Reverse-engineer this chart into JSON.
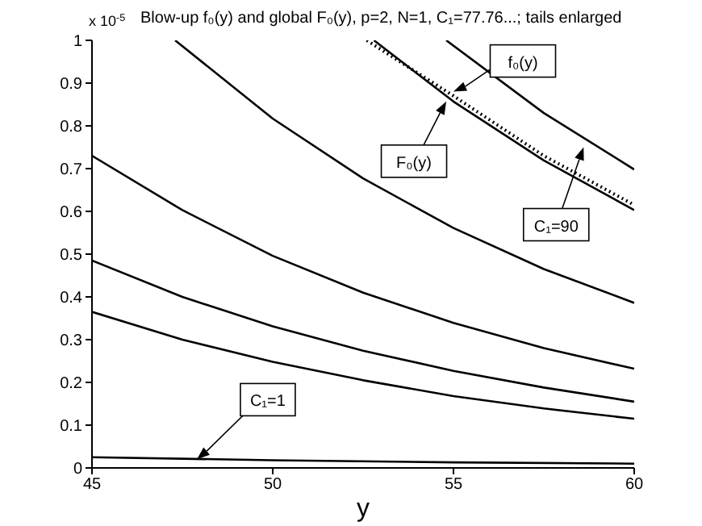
{
  "chart_data": {
    "type": "line",
    "title": "Blow-up  f₀(y) and  global  F₀(y), p=2, N=1, C₁=77.76...; tails enlarged",
    "xlabel": "y",
    "xlim": [
      45,
      60
    ],
    "xticks": [
      45,
      50,
      55,
      60
    ],
    "ylim": [
      0,
      1
    ],
    "yticks": [
      0,
      0.1,
      0.2,
      0.3,
      0.4,
      0.5,
      0.6,
      0.7,
      0.8,
      0.9,
      1
    ],
    "grid": false,
    "marker": "none",
    "line_style": "solid",
    "series": [
      {
        "color": "#000000",
        "x": [
          45,
          50,
          55,
          60
        ],
        "values": [
          0.025,
          0.018,
          0.013,
          0.01
        ]
      },
      {
        "color": "#000000",
        "x": [
          45,
          47.5,
          50,
          52.5,
          55,
          57.5,
          60
        ],
        "values": [
          0.365,
          0.3,
          0.248,
          0.205,
          0.168,
          0.139,
          0.115
        ]
      },
      {
        "color": "#000000",
        "x": [
          45,
          47.5,
          50,
          52.5,
          55,
          57.5,
          60
        ],
        "values": [
          0.485,
          0.4,
          0.331,
          0.274,
          0.227,
          0.188,
          0.155
        ]
      },
      {
        "color": "#000000",
        "x": [
          45,
          47.5,
          50,
          52.5,
          55,
          57.5,
          60
        ],
        "values": [
          0.73,
          0.603,
          0.496,
          0.41,
          0.339,
          0.28,
          0.232
        ]
      },
      {
        "color": "#000000",
        "x": [
          47.3,
          50,
          52.5,
          55,
          57.5,
          60
        ],
        "values": [
          1,
          0.817,
          0.677,
          0.561,
          0.465,
          0.386
        ]
      },
      {
        "color": "#000000",
        "x": [
          52.8,
          55,
          57.5,
          60
        ],
        "values": [
          1,
          0.857,
          0.719,
          0.603
        ]
      },
      {
        "color": "#000000",
        "line_style": "dotted",
        "x": [
          52.6,
          55,
          57.5,
          60
        ],
        "values": [
          1,
          0.87,
          0.73,
          0.615
        ]
      },
      {
        "color": "#000000",
        "x": [
          54.8,
          57.5,
          60
        ],
        "values": [
          1,
          0.83,
          0.698
        ]
      }
    ],
    "annotations": [
      "x 10$^{-5}$",
      {
        "text": "f₀(y)",
        "x": 55,
        "y": 0.88
      },
      {
        "text": "F₀(y)",
        "x": 54.8,
        "y": 0.857
      },
      {
        "text": "C₁=90",
        "x": 58.6,
        "y": 0.75
      },
      {
        "text": "C₁=1",
        "x": 47.9,
        "y": 0.02
      }
    ]
  }
}
